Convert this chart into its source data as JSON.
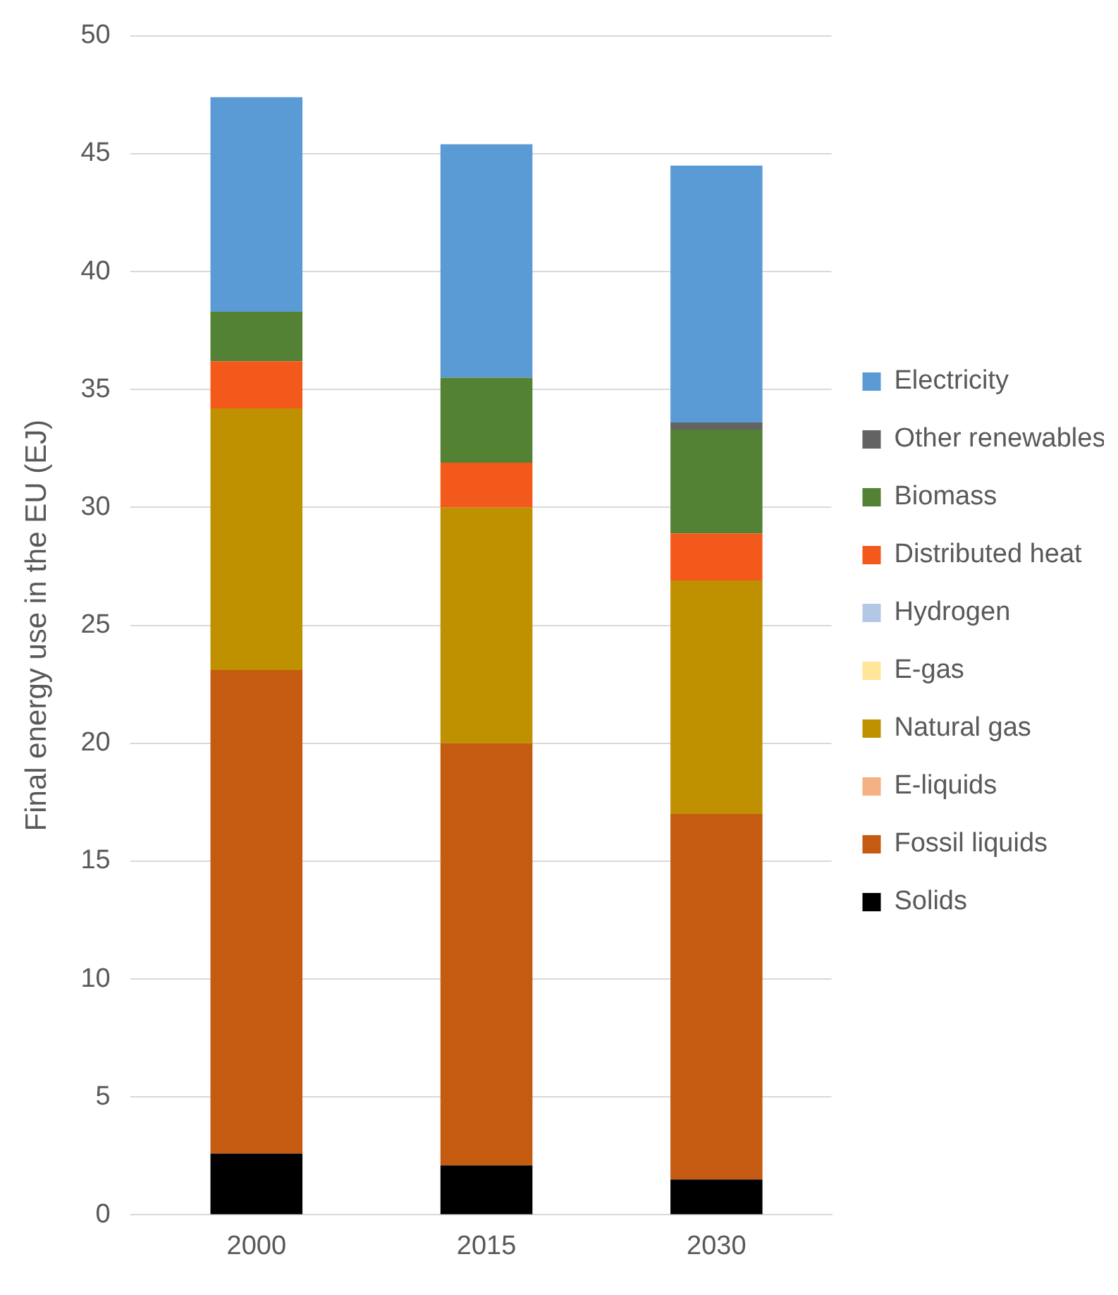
{
  "chart_data": {
    "type": "bar",
    "stacked": true,
    "ylabel": "Final energy use in the EU (EJ)",
    "categories": [
      "2000",
      "2015",
      "2030"
    ],
    "series": [
      {
        "name": "Solids",
        "color": "#000000",
        "values": [
          2.6,
          2.1,
          1.5
        ]
      },
      {
        "name": "Fossil liquids",
        "color": "#c55a11",
        "values": [
          20.5,
          17.9,
          15.5
        ]
      },
      {
        "name": "E-liquids",
        "color": "#f4b183",
        "values": [
          0,
          0,
          0
        ]
      },
      {
        "name": "Natural gas",
        "color": "#bf9000",
        "values": [
          11.1,
          10.0,
          9.9
        ]
      },
      {
        "name": "E-gas",
        "color": "#ffe699",
        "values": [
          0,
          0,
          0
        ]
      },
      {
        "name": "Hydrogen",
        "color": "#b4c7e7",
        "values": [
          0,
          0,
          0
        ]
      },
      {
        "name": "Distributed heat",
        "color": "#f4591c",
        "values": [
          2.0,
          1.9,
          2.0
        ]
      },
      {
        "name": "Biomass",
        "color": "#548235",
        "values": [
          2.1,
          3.6,
          4.4
        ]
      },
      {
        "name": "Other renewables",
        "color": "#636363",
        "values": [
          0,
          0,
          0.3
        ]
      },
      {
        "name": "Electricity",
        "color": "#5b9bd5",
        "values": [
          9.1,
          9.9,
          10.9
        ]
      }
    ],
    "ylim": [
      0,
      50
    ],
    "yticks": [
      0,
      5,
      10,
      15,
      20,
      25,
      30,
      35,
      40,
      45,
      50
    ],
    "grid": "y",
    "legend": "right"
  }
}
